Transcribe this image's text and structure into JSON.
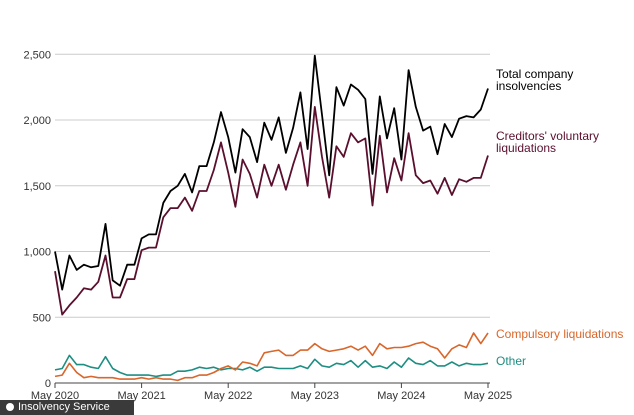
{
  "chart_data": {
    "type": "line",
    "title": "",
    "xlabel": "",
    "ylabel": "",
    "ylim": [
      0,
      2700
    ],
    "yticks": [
      0,
      500,
      1000,
      1500,
      2000,
      2500
    ],
    "ytick_labels": [
      "0",
      "500",
      "1,000",
      "1,500",
      "2,000",
      "2,500"
    ],
    "x_start": "2020-05",
    "x_end": "2025-05",
    "xticks": [
      "May 2020",
      "May 2021",
      "May 2022",
      "May 2023",
      "May 2024",
      "May 2025"
    ],
    "grid": "horizontal",
    "legend": "inline-right",
    "series": [
      {
        "name": "Total company insolvencies",
        "label_lines": [
          "Total company",
          "insolvencies"
        ],
        "color": "#000000",
        "values": [
          1000,
          710,
          970,
          860,
          900,
          880,
          890,
          1210,
          780,
          740,
          900,
          900,
          1100,
          1130,
          1130,
          1370,
          1460,
          1500,
          1590,
          1450,
          1650,
          1650,
          1830,
          2060,
          1870,
          1600,
          1930,
          1870,
          1680,
          1980,
          1850,
          2020,
          1750,
          1940,
          2210,
          1780,
          2490,
          2040,
          1580,
          2250,
          2110,
          2270,
          2230,
          2160,
          1590,
          2180,
          1860,
          2090,
          1700,
          2380,
          2100,
          1920,
          1950,
          1740,
          1970,
          1870,
          2010,
          2030,
          2020,
          2080,
          2240
        ]
      },
      {
        "name": "Creditors' voluntary liquidations",
        "label_lines": [
          "Creditors' voluntary",
          "liquidations"
        ],
        "color": "#5a0f2e",
        "values": [
          850,
          520,
          590,
          650,
          720,
          710,
          770,
          970,
          650,
          650,
          790,
          790,
          1010,
          1030,
          1030,
          1260,
          1330,
          1330,
          1410,
          1310,
          1460,
          1460,
          1620,
          1830,
          1600,
          1340,
          1700,
          1590,
          1410,
          1660,
          1500,
          1660,
          1470,
          1660,
          1830,
          1500,
          2100,
          1720,
          1410,
          1800,
          1720,
          1900,
          1830,
          1860,
          1350,
          1880,
          1450,
          1710,
          1540,
          1900,
          1580,
          1520,
          1540,
          1440,
          1560,
          1430,
          1550,
          1530,
          1560,
          1560,
          1730
        ]
      },
      {
        "name": "Compulsory liquidations",
        "label_lines": [
          "Compulsory liquidations"
        ],
        "color": "#d9662b",
        "values": [
          50,
          60,
          150,
          80,
          40,
          50,
          40,
          40,
          40,
          30,
          30,
          30,
          40,
          30,
          40,
          30,
          30,
          20,
          40,
          40,
          60,
          60,
          80,
          110,
          130,
          100,
          160,
          150,
          130,
          230,
          240,
          250,
          210,
          210,
          250,
          250,
          300,
          260,
          240,
          250,
          260,
          280,
          250,
          280,
          210,
          300,
          260,
          270,
          270,
          280,
          300,
          310,
          280,
          260,
          190,
          260,
          290,
          270,
          380,
          300,
          380
        ]
      },
      {
        "name": "Other",
        "label_lines": [
          "Other"
        ],
        "color": "#1e8e82",
        "values": [
          100,
          110,
          210,
          140,
          140,
          120,
          110,
          200,
          110,
          80,
          60,
          60,
          60,
          60,
          50,
          60,
          60,
          90,
          90,
          100,
          120,
          110,
          120,
          100,
          110,
          110,
          100,
          120,
          90,
          120,
          120,
          110,
          110,
          110,
          130,
          110,
          180,
          130,
          120,
          150,
          140,
          170,
          120,
          170,
          120,
          130,
          110,
          160,
          120,
          190,
          150,
          140,
          170,
          130,
          130,
          160,
          130,
          150,
          140,
          140,
          150
        ]
      }
    ]
  },
  "source": {
    "label": "Insolvency Service"
  }
}
